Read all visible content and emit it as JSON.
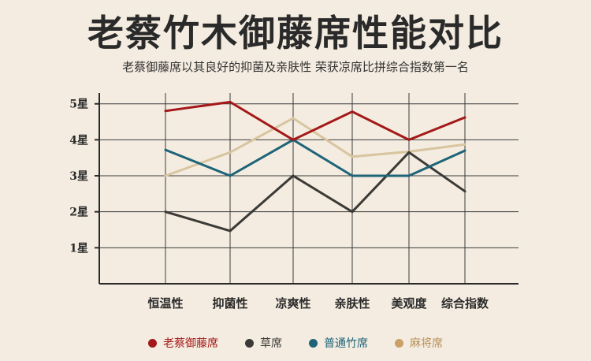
{
  "title": "老蔡竹木御藤席性能对比",
  "subtitle": "老蔡御藤席以其良好的抑菌及亲肤性 荣获凉席比拼综合指数第一名",
  "chart_data": {
    "type": "line",
    "categories": [
      "恒温性",
      "抑菌性",
      "凉爽性",
      "亲肤性",
      "美观度",
      "综合指数"
    ],
    "y_ticks": [
      1,
      2,
      3,
      4,
      5
    ],
    "y_tick_labels": [
      "1星",
      "2星",
      "3星",
      "4星",
      "5星"
    ],
    "ylim": [
      0,
      5.3
    ],
    "grid": true,
    "legend_position": "bottom",
    "series": [
      {
        "name": "老蔡御藤席",
        "color": "#a31818",
        "values": [
          4.8,
          5.05,
          4.0,
          4.78,
          4.0,
          4.62
        ]
      },
      {
        "name": "草席",
        "color": "#3b3a36",
        "values": [
          2.0,
          1.47,
          3.0,
          2.0,
          3.65,
          2.57
        ]
      },
      {
        "name": "普通竹席",
        "color": "#1e6478",
        "values": [
          3.72,
          3.0,
          4.0,
          3.0,
          3.0,
          3.7
        ]
      },
      {
        "name": "麻将席",
        "color": "#d8c5a0",
        "values": [
          3.0,
          3.65,
          4.6,
          3.53,
          3.67,
          3.87
        ]
      }
    ]
  }
}
